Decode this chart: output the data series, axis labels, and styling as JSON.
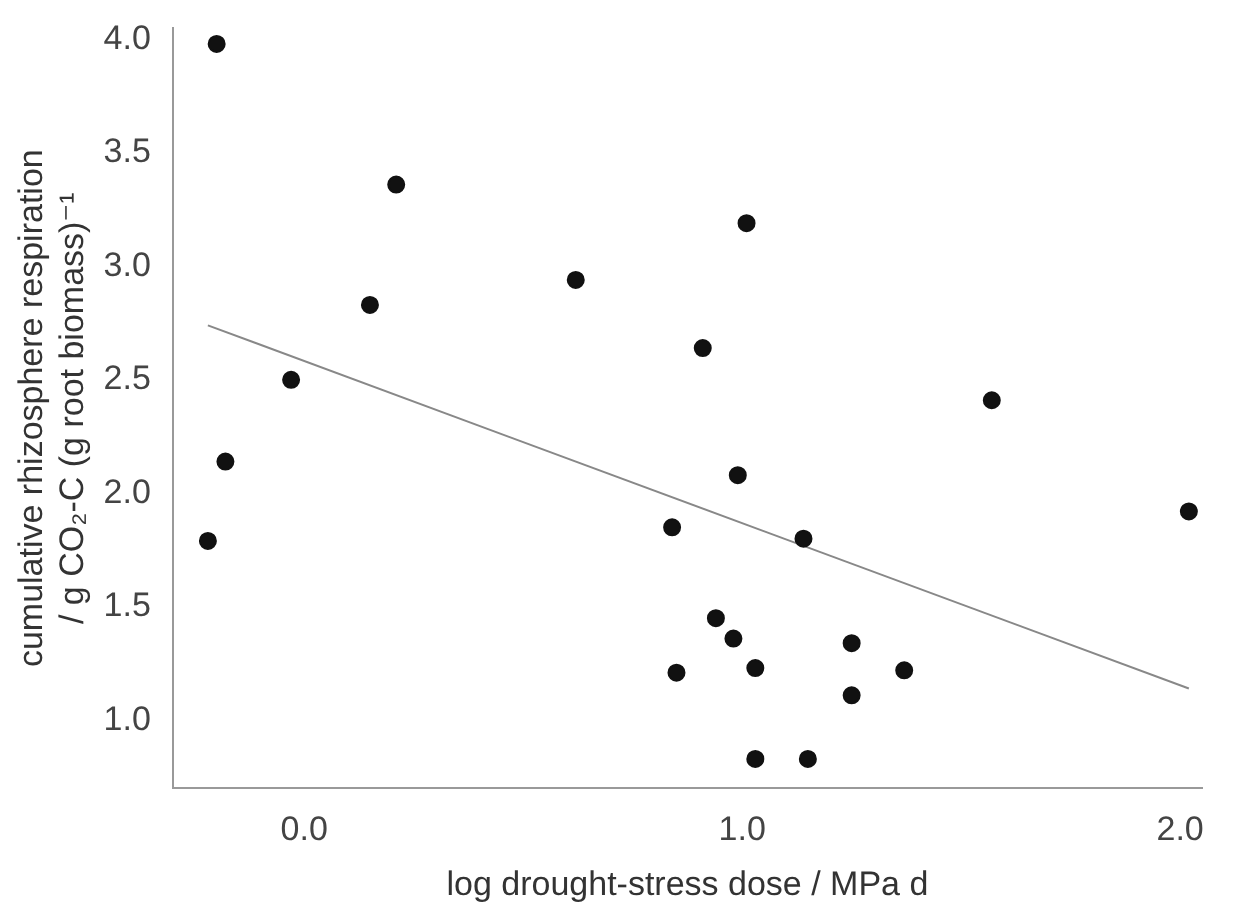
{
  "chart_data": {
    "type": "scatter",
    "xlabel": "log drought-stress dose / MPa d",
    "ylabel": "cumulative rhizosphere respiration\n/ g CO₂-C (g root biomass)⁻¹",
    "xlim": [
      -0.3,
      2.05
    ],
    "ylim": [
      0.7,
      4.05
    ],
    "xticks": [
      {
        "value": 0,
        "label": "0.0"
      },
      {
        "value": 1,
        "label": "1.0"
      },
      {
        "value": 2,
        "label": "2.0"
      }
    ],
    "yticks": [
      {
        "value": 1,
        "label": "1.0"
      },
      {
        "value": 1.5,
        "label": "1.5"
      },
      {
        "value": 2,
        "label": "2.0"
      },
      {
        "value": 2.5,
        "label": "2.5"
      },
      {
        "value": 3,
        "label": "3.0"
      },
      {
        "value": 3.5,
        "label": "3.5"
      },
      {
        "value": 4,
        "label": "4.0"
      }
    ],
    "grid": false,
    "legend": false,
    "marker": "circle",
    "series": [
      {
        "color": "#111111",
        "x": [
          -0.2,
          0.21,
          1.01,
          0.62,
          0.15,
          0.91,
          -0.03,
          -0.18,
          0.99,
          -0.22,
          0.84,
          1.14,
          0.94,
          0.98,
          0.85,
          1.03,
          1.03,
          1.15,
          1.57,
          2.02,
          1.25,
          1.37,
          1.25
        ],
        "values": [
          3.98,
          3.36,
          3.19,
          2.94,
          2.83,
          2.64,
          2.5,
          2.14,
          2.08,
          1.79,
          1.85,
          1.8,
          1.45,
          1.36,
          1.21,
          1.23,
          0.83,
          0.83,
          2.41,
          1.92,
          1.34,
          1.22,
          1.11
        ]
      },
      {
        "type": "line",
        "color": "#888888",
        "marker": "none",
        "line_style": "solid",
        "x": [
          -0.22,
          2.02
        ],
        "values": [
          2.74,
          1.14
        ]
      }
    ]
  }
}
